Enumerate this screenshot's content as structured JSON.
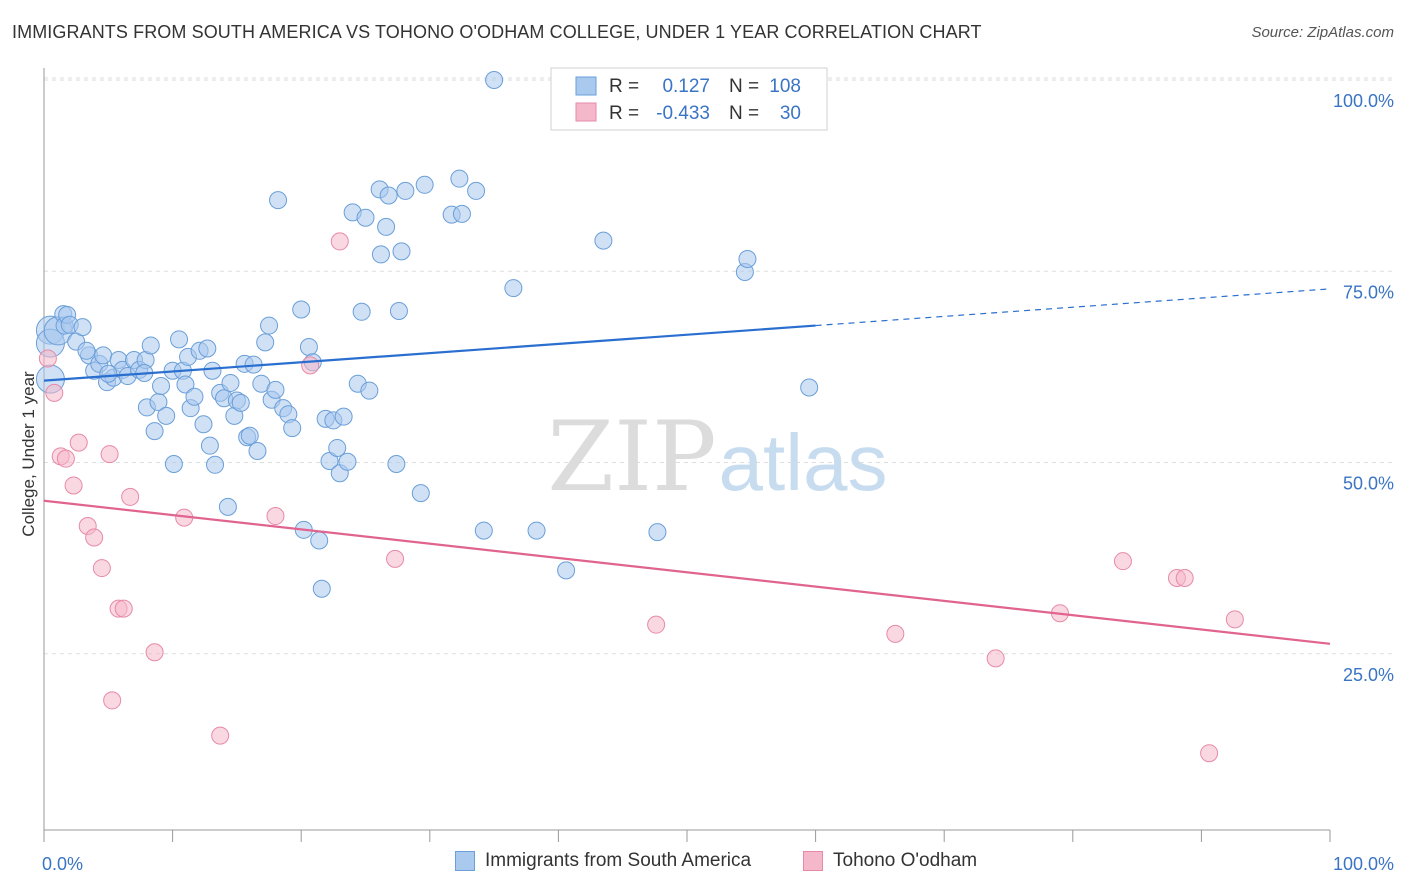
{
  "title": "IMMIGRANTS FROM SOUTH AMERICA VS TOHONO O'ODHAM COLLEGE, UNDER 1 YEAR CORRELATION CHART",
  "source": "Source: ZipAtlas.com",
  "watermark": {
    "zip": "ZIP",
    "atlas": "atlas"
  },
  "legend_top": {
    "rows": [
      {
        "r_label": "R =",
        "r_value": "0.127",
        "n_label": "N =",
        "n_value": "108"
      },
      {
        "r_label": "R =",
        "r_value": "-0.433",
        "n_label": "N =",
        "n_value": "30"
      }
    ]
  },
  "legend_bottom": [
    "Immigrants from South America",
    "Tohono O'odham"
  ],
  "colors": {
    "series1_fill": "#a9c9ee",
    "series1_stroke": "#6a9fd8",
    "series1_line": "#2a6fd0",
    "series2_fill": "#f5b8cb",
    "series2_stroke": "#e78aa8",
    "series2_line": "#e0648f",
    "tick_label": "#3a74c4",
    "grid": "#dddddd"
  },
  "chart_data": {
    "type": "scatter",
    "title": "IMMIGRANTS FROM SOUTH AMERICA VS TOHONO O'ODHAM COLLEGE, UNDER 1 YEAR CORRELATION CHART",
    "xlabel": "",
    "ylabel": "College, Under 1 year",
    "xlim": [
      0,
      100
    ],
    "ylim": [
      0,
      102
    ],
    "x_tick_labels": [
      "0.0%",
      "100.0%"
    ],
    "y_ticks": [
      25,
      50,
      75,
      100
    ],
    "y_tick_labels": [
      "25.0%",
      "50.0%",
      "75.0%",
      "100.0%"
    ],
    "grid": "horizontal dashed",
    "legend_position": "top-center",
    "series": [
      {
        "name": "Immigrants from South America",
        "r": 0.127,
        "n": 108,
        "trend": {
          "x0": 0,
          "y0": 60.7,
          "x1": 60,
          "y1": 67.9,
          "dashed_to_x": 100,
          "dashed_to_y": 72.7
        },
        "points": [
          [
            0.5,
            67.3
          ],
          [
            0.5,
            65.6
          ],
          [
            0.5,
            60.9
          ],
          [
            1.1,
            67.2
          ],
          [
            1.5,
            69.4
          ],
          [
            1.6,
            67.9
          ],
          [
            1.8,
            69.3
          ],
          [
            2.0,
            68.0
          ],
          [
            2.5,
            65.8
          ],
          [
            3.0,
            67.7
          ],
          [
            3.5,
            64.0
          ],
          [
            3.9,
            62.0
          ],
          [
            4.3,
            62.9
          ],
          [
            4.6,
            64.0
          ],
          [
            4.9,
            60.5
          ],
          [
            5.4,
            61.1
          ],
          [
            5.8,
            63.4
          ],
          [
            6.1,
            62.1
          ],
          [
            6.5,
            61.3
          ],
          [
            7.0,
            63.4
          ],
          [
            7.4,
            62.1
          ],
          [
            7.9,
            63.4
          ],
          [
            7.8,
            61.7
          ],
          [
            8.0,
            57.2
          ],
          [
            8.3,
            65.3
          ],
          [
            8.6,
            54.1
          ],
          [
            8.9,
            57.9
          ],
          [
            9.1,
            60.0
          ],
          [
            9.5,
            56.1
          ],
          [
            10.0,
            62.0
          ],
          [
            10.1,
            49.8
          ],
          [
            10.5,
            66.1
          ],
          [
            10.8,
            62.0
          ],
          [
            11.0,
            60.2
          ],
          [
            11.2,
            63.8
          ],
          [
            11.4,
            57.1
          ],
          [
            11.7,
            58.6
          ],
          [
            12.1,
            64.6
          ],
          [
            12.4,
            55.0
          ],
          [
            12.7,
            64.9
          ],
          [
            12.9,
            52.2
          ],
          [
            13.1,
            62.0
          ],
          [
            13.3,
            49.7
          ],
          [
            13.7,
            59.1
          ],
          [
            14.0,
            58.4
          ],
          [
            14.3,
            44.2
          ],
          [
            14.5,
            60.4
          ],
          [
            14.8,
            56.1
          ],
          [
            15.0,
            58.1
          ],
          [
            15.3,
            57.8
          ],
          [
            15.6,
            62.9
          ],
          [
            15.8,
            53.3
          ],
          [
            16.0,
            53.5
          ],
          [
            16.3,
            62.8
          ],
          [
            16.6,
            51.5
          ],
          [
            16.9,
            60.3
          ],
          [
            17.2,
            65.7
          ],
          [
            17.5,
            67.9
          ],
          [
            17.7,
            58.2
          ],
          [
            18.0,
            59.5
          ],
          [
            18.2,
            84.3
          ],
          [
            18.6,
            57.1
          ],
          [
            19.0,
            56.3
          ],
          [
            19.3,
            54.5
          ],
          [
            20.0,
            70.0
          ],
          [
            20.2,
            41.2
          ],
          [
            20.6,
            65.1
          ],
          [
            20.9,
            63.1
          ],
          [
            21.4,
            39.8
          ],
          [
            21.6,
            33.5
          ],
          [
            21.9,
            55.7
          ],
          [
            22.2,
            50.2
          ],
          [
            22.5,
            55.5
          ],
          [
            22.8,
            51.9
          ],
          [
            23.0,
            48.6
          ],
          [
            23.3,
            56.0
          ],
          [
            23.6,
            50.1
          ],
          [
            24.0,
            82.7
          ],
          [
            24.4,
            60.3
          ],
          [
            24.7,
            69.7
          ],
          [
            25.0,
            82.0
          ],
          [
            25.3,
            59.4
          ],
          [
            26.1,
            85.7
          ],
          [
            26.2,
            77.2
          ],
          [
            26.6,
            80.8
          ],
          [
            26.8,
            84.9
          ],
          [
            27.6,
            69.8
          ],
          [
            27.8,
            77.6
          ],
          [
            28.1,
            85.5
          ],
          [
            27.4,
            49.8
          ],
          [
            29.6,
            86.3
          ],
          [
            29.3,
            46.0
          ],
          [
            31.7,
            82.4
          ],
          [
            32.3,
            87.1
          ],
          [
            32.5,
            82.5
          ],
          [
            33.6,
            85.5
          ],
          [
            34.2,
            41.1
          ],
          [
            35.0,
            100.0
          ],
          [
            36.5,
            72.8
          ],
          [
            38.3,
            41.1
          ],
          [
            40.6,
            35.9
          ],
          [
            43.5,
            79.0
          ],
          [
            47.7,
            40.9
          ],
          [
            54.5,
            74.9
          ],
          [
            54.7,
            76.6
          ],
          [
            59.5,
            59.8
          ],
          [
            3.3,
            64.6
          ],
          [
            5.0,
            61.6
          ]
        ]
      },
      {
        "name": "Tohono O'odham",
        "r": -0.433,
        "n": 30,
        "trend": {
          "x0": 0,
          "y0": 45.0,
          "x1": 100,
          "y1": 26.3
        },
        "points": [
          [
            0.3,
            63.6
          ],
          [
            0.8,
            59.1
          ],
          [
            1.3,
            50.8
          ],
          [
            1.7,
            50.5
          ],
          [
            2.3,
            47.0
          ],
          [
            2.7,
            52.6
          ],
          [
            3.4,
            41.7
          ],
          [
            3.9,
            40.2
          ],
          [
            4.5,
            36.2
          ],
          [
            5.1,
            51.1
          ],
          [
            5.3,
            18.9
          ],
          [
            5.8,
            30.9
          ],
          [
            6.2,
            30.9
          ],
          [
            6.7,
            45.5
          ],
          [
            8.6,
            25.2
          ],
          [
            10.9,
            42.8
          ],
          [
            13.7,
            14.3
          ],
          [
            18.0,
            43.0
          ],
          [
            20.7,
            62.7
          ],
          [
            23.0,
            78.9
          ],
          [
            27.3,
            37.4
          ],
          [
            47.6,
            28.8
          ],
          [
            66.2,
            27.6
          ],
          [
            74.0,
            24.4
          ],
          [
            79.0,
            30.3
          ],
          [
            83.9,
            37.1
          ],
          [
            88.1,
            34.9
          ],
          [
            88.7,
            34.9
          ],
          [
            90.6,
            12.0
          ],
          [
            92.6,
            29.5
          ]
        ]
      }
    ]
  }
}
